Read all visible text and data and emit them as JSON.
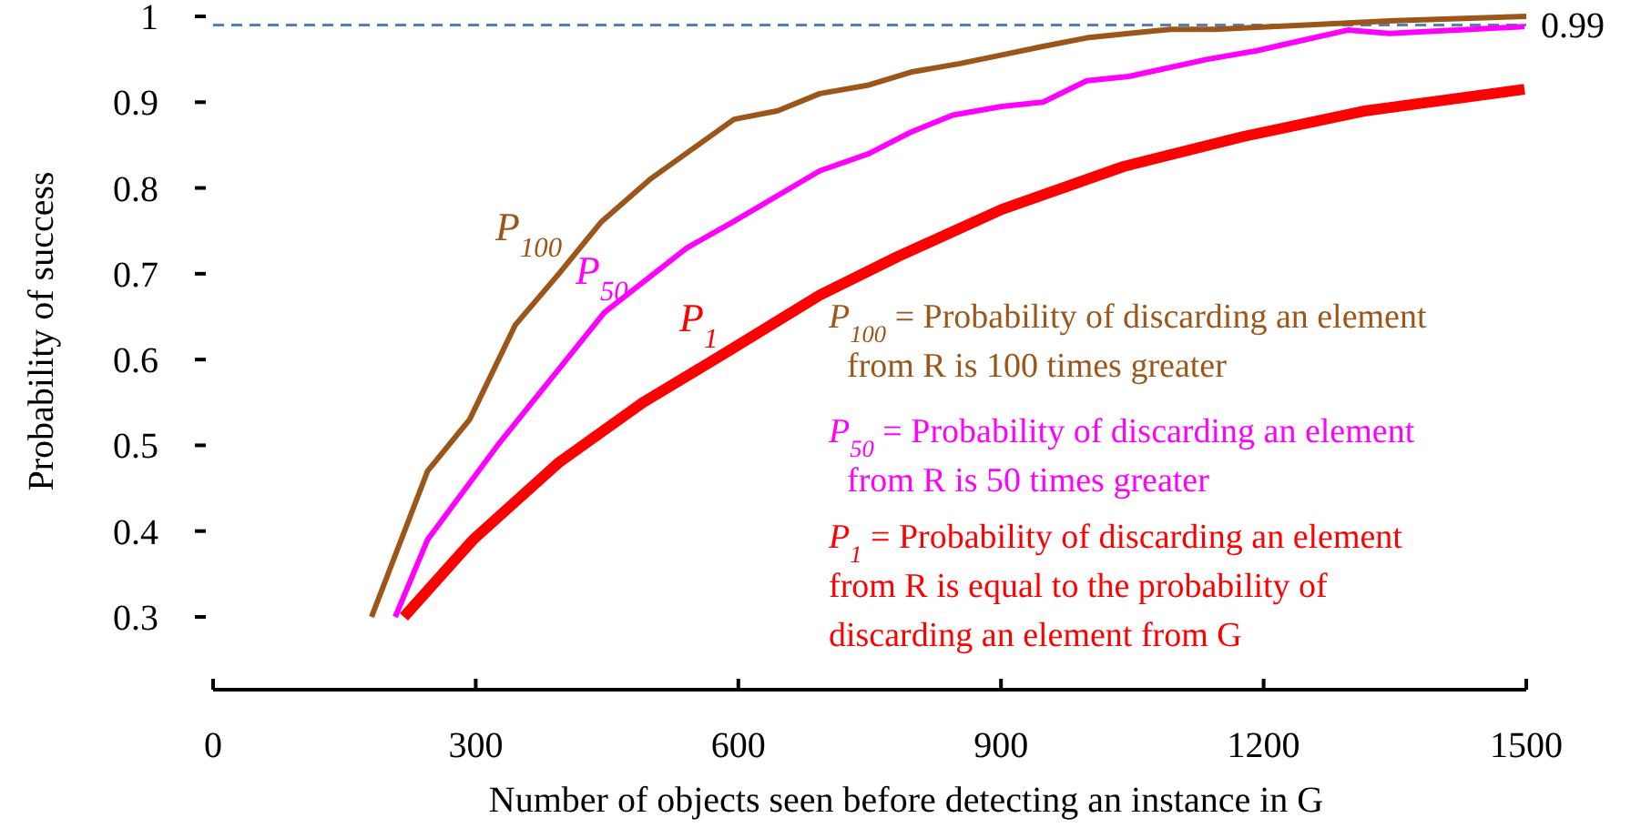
{
  "chart_data": {
    "type": "line",
    "xlabel": "Number of objects seen before detecting an instance in G",
    "ylabel": "Probability of success",
    "xlim": [
      0,
      1500
    ],
    "xticks": [
      0,
      300,
      600,
      900,
      1200,
      1500
    ],
    "ylim": [
      0.3,
      1
    ],
    "yticks": [
      0.3,
      0.4,
      0.5,
      0.6,
      0.7,
      0.8,
      0.9,
      1
    ],
    "grid": false,
    "marker": "none",
    "line_style": "solid",
    "ref_lines": [
      {
        "axis": "y",
        "value": 0.99,
        "label": "0.99",
        "color": "#4f81bd",
        "line_style": "dashed"
      }
    ],
    "series": [
      {
        "name": "P$_{100}$",
        "color": "#9c5619",
        "x": [
          181,
          245,
          293,
          345,
          395,
          443,
          499,
          595,
          645,
          693,
          749,
          797,
          853,
          901,
          948,
          998,
          1046,
          1094,
          1144,
          1248,
          1350,
          1500
        ],
        "values": [
          0.3,
          0.47,
          0.53,
          0.64,
          0.7,
          0.76,
          0.81,
          0.88,
          0.89,
          0.91,
          0.92,
          0.935,
          0.945,
          0.955,
          0.965,
          0.975,
          0.98,
          0.985,
          0.985,
          0.99,
          0.995,
          1.0
        ]
      },
      {
        "name": "P$_{50}$",
        "color": "#ff00ff",
        "x": [
          208,
          245,
          325,
          447,
          541,
          593,
          693,
          749,
          797,
          845,
          901,
          948,
          998,
          1046,
          1136,
          1192,
          1248,
          1296,
          1344,
          1498
        ],
        "values": [
          0.3,
          0.39,
          0.5,
          0.655,
          0.73,
          0.76,
          0.82,
          0.84,
          0.865,
          0.885,
          0.895,
          0.9,
          0.925,
          0.93,
          0.95,
          0.96,
          0.973,
          0.984,
          0.98,
          0.988
        ]
      },
      {
        "name": "P$_{1}$",
        "color": "#ff0000",
        "x": [
          218,
          297,
          395,
          491,
          589,
          693,
          782,
          901,
          1040,
          1177,
          1317,
          1498
        ],
        "values": [
          0.3,
          0.39,
          0.48,
          0.55,
          0.61,
          0.675,
          0.72,
          0.775,
          0.825,
          0.86,
          0.89,
          0.915
        ]
      }
    ],
    "annotations": [
      "P$_{100}$ = Probability of discarding an element\nfrom R is 100 times greater",
      "P$_{50}$ = Probability of discarding an element\nfrom R is 50 times greater",
      "P$_{1}$ = Probability of discarding an element\nfrom R is equal to the probability of\ndiscarding an element from G"
    ]
  }
}
